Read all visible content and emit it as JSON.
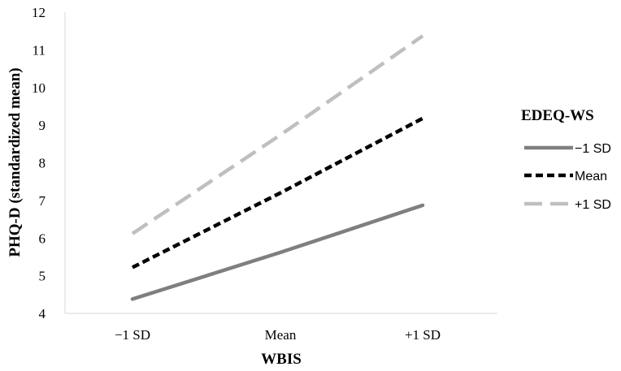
{
  "chart_data": {
    "type": "line",
    "categories": [
      "−1 SD",
      "Mean",
      "+1 SD"
    ],
    "xlabel": "WBIS",
    "ylabel": "PHQ-D (standardized mean)",
    "ylim": [
      4,
      12
    ],
    "yticks": [
      4,
      5,
      6,
      7,
      8,
      9,
      10,
      11,
      12
    ],
    "grid": false,
    "legend_title": "EDEQ-WS",
    "legend_position": "right",
    "series": [
      {
        "name": "−1 SD",
        "values": [
          4.38,
          5.62,
          6.87
        ],
        "color": "#7f7f7f",
        "dash": "solid"
      },
      {
        "name": "Mean",
        "values": [
          5.22,
          7.2,
          9.18
        ],
        "color": "#000000",
        "dash": "short-dash"
      },
      {
        "name": "+1 SD",
        "values": [
          6.12,
          8.74,
          11.37
        ],
        "color": "#bfbfbf",
        "dash": "long-dash"
      }
    ]
  }
}
